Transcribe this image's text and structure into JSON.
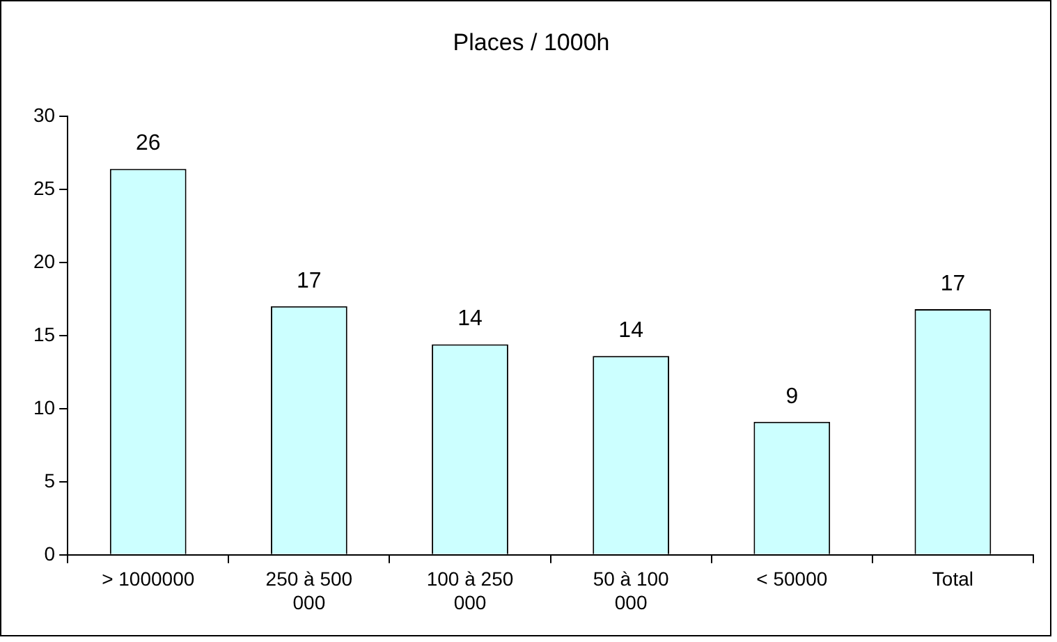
{
  "chart_data": {
    "type": "bar",
    "title": "Places / 1000h",
    "categories": [
      "> 1000000",
      "250 à 500 000",
      "100 à 250 000",
      "50 à 100 000",
      "< 50000",
      "Total"
    ],
    "values": [
      26.4,
      17,
      14.4,
      13.6,
      9.1,
      16.8
    ],
    "value_labels": [
      "26",
      "17",
      "14",
      "14",
      "9",
      "17"
    ],
    "color": "#ccffff",
    "ylim": [
      0,
      30
    ],
    "yticks": [
      0,
      5,
      10,
      15,
      20,
      25,
      30
    ],
    "grid": false,
    "legend": false
  }
}
